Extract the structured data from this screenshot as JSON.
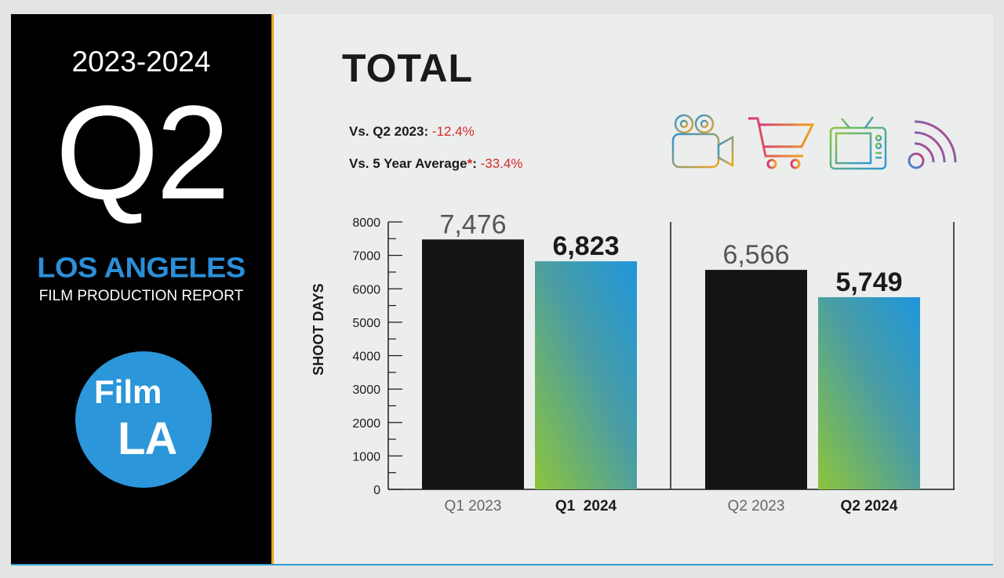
{
  "left": {
    "year": "2023-2024",
    "quarter": "Q2",
    "city": "LOS ANGELES",
    "report": "FILM PRODUCTION REPORT",
    "logo_line1": "Film",
    "logo_line2": "LA"
  },
  "header": {
    "title": "TOTAL",
    "cmp1_label": "Vs. Q2 2023: ",
    "cmp1_value": "-12.4%",
    "cmp2_label": "Vs. 5 Year Average",
    "cmp2_star": "*",
    "cmp2_colon": ": ",
    "cmp2_value": "-33.4%"
  },
  "icons": [
    "film-camera-icon",
    "shopping-cart-icon",
    "television-icon",
    "broadcast-icon"
  ],
  "colors": {
    "accent": "#f0a41c",
    "brand": "#2b8fd9",
    "negative": "#d42a2a",
    "bar_prev": "#141414"
  },
  "chart_data": {
    "type": "bar",
    "ylabel": "SHOOT DAYS",
    "ylim": [
      0,
      8000
    ],
    "yticks": [
      0,
      1000,
      2000,
      3000,
      4000,
      5000,
      6000,
      7000,
      8000
    ],
    "groups": [
      {
        "bars": [
          {
            "label": "Q1 2023",
            "value": 7476,
            "value_label": "7,476",
            "style": "dark"
          },
          {
            "label": "Q1  2024",
            "value": 6823,
            "value_label": "6,823",
            "style": "gradient"
          }
        ]
      },
      {
        "bars": [
          {
            "label": "Q2 2023",
            "value": 6566,
            "value_label": "6,566",
            "style": "dark"
          },
          {
            "label": "Q2 2024",
            "value": 5749,
            "value_label": "5,749",
            "style": "gradient"
          }
        ]
      }
    ]
  }
}
